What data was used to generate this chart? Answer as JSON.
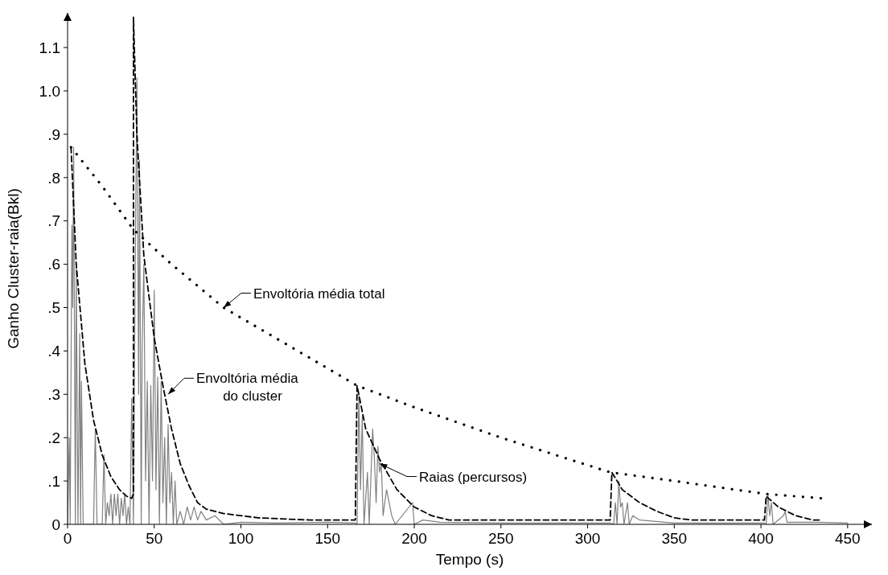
{
  "chart_data": {
    "type": "line",
    "xlabel": "Tempo (s)",
    "ylabel": "Ganho Cluster-raia(Bkl)",
    "xlim": [
      0,
      464
    ],
    "xticks": [
      0,
      50,
      100,
      150,
      200,
      250,
      300,
      350,
      400,
      450
    ],
    "ylim": [
      0,
      1.18
    ],
    "yticks": [
      0,
      {
        "value": 0.1,
        "label": ".1"
      },
      {
        "value": 0.2,
        "label": ".2"
      },
      {
        "value": 0.3,
        "label": ".3"
      },
      {
        "value": 0.4,
        "label": ".4"
      },
      {
        "value": 0.5,
        "label": ".5"
      },
      {
        "value": 0.6,
        "label": ".6"
      },
      {
        "value": 0.7,
        "label": ".7"
      },
      {
        "value": 0.8,
        "label": ".8"
      },
      {
        "value": 0.9,
        "label": ".9"
      },
      {
        "value": 1.0,
        "label": "1.0"
      },
      {
        "value": 1.1,
        "label": "1.1"
      }
    ],
    "grid": false,
    "legend": false,
    "marker": "none",
    "series": [
      {
        "color": "#808080",
        "line_style": "solid",
        "x": [
          0,
          1,
          1.5,
          2.5,
          3,
          3.5,
          4.5,
          5,
          6,
          7,
          7.5,
          8,
          9,
          15,
          16,
          17,
          20,
          21,
          22,
          23,
          24,
          25,
          26,
          27,
          28,
          29,
          30,
          31,
          32,
          33,
          34,
          35,
          36,
          37,
          38,
          39,
          40,
          41,
          41.5,
          42.5,
          43,
          44,
          45,
          46,
          47,
          48,
          49,
          50,
          51,
          52,
          53,
          54,
          55,
          56,
          57,
          58,
          59,
          60,
          61,
          62,
          63,
          65,
          67,
          69,
          71,
          73,
          75,
          77,
          80,
          85,
          90,
          100,
          120,
          150,
          166,
          167,
          168,
          169,
          170,
          171,
          173,
          174,
          176,
          177,
          178,
          179,
          180,
          181,
          182,
          184,
          185,
          187,
          189,
          199,
          200,
          205,
          215,
          250,
          313,
          315,
          316,
          317,
          318,
          319,
          320,
          321,
          323,
          324,
          326,
          330,
          350,
          402,
          403,
          404,
          405,
          406,
          407,
          413,
          414,
          415,
          430,
          450
        ],
        "values": [
          0,
          0.2,
          0,
          0.69,
          0.5,
          0.87,
          0,
          0.6,
          0,
          0.44,
          0,
          0.33,
          0,
          0,
          0.22,
          0,
          0,
          0.16,
          0,
          0.05,
          0.02,
          0.07,
          0,
          0.07,
          0.02,
          0.07,
          0,
          0.06,
          0.02,
          0.07,
          0,
          0.04,
          0,
          0.29,
          0,
          0.58,
          1.03,
          0.3,
          0.84,
          0,
          0.4,
          0.6,
          0.1,
          0.33,
          0,
          0.32,
          0.1,
          0.54,
          0.08,
          0.34,
          0,
          0.33,
          0.05,
          0.2,
          0,
          0.23,
          0.05,
          0.12,
          0,
          0.1,
          0,
          0.03,
          0,
          0.04,
          0.01,
          0.04,
          0.01,
          0.03,
          0.01,
          0.02,
          0,
          0.005,
          0.003,
          0.005,
          0.003,
          0,
          0.3,
          0.08,
          0.25,
          0,
          0.12,
          0,
          0.22,
          0.15,
          0.05,
          0.18,
          0.12,
          0.14,
          0.02,
          0.08,
          0.06,
          0.02,
          0,
          0.05,
          0,
          0.01,
          0.005,
          0.003,
          0.003,
          0,
          0.05,
          0,
          0.1,
          0.04,
          0.05,
          0,
          0.05,
          0,
          0.02,
          0.01,
          0.003,
          0.003,
          0,
          0.07,
          0.02,
          0.05,
          0,
          0.02,
          0.03,
          0.005,
          0.005,
          0.003
        ]
      },
      {
        "color": "#000000",
        "line_style": "dashed",
        "x": [
          2,
          5,
          10,
          15,
          20,
          25,
          30,
          34,
          37,
          38,
          38,
          40,
          44,
          50,
          55,
          60,
          65,
          70,
          75,
          80,
          90,
          110,
          140,
          166,
          167,
          172,
          180,
          190,
          200,
          210,
          220,
          313,
          314,
          320,
          330,
          340,
          350,
          360,
          402,
          403,
          410,
          420,
          430,
          435
        ],
        "values": [
          0.87,
          0.6,
          0.37,
          0.24,
          0.16,
          0.11,
          0.08,
          0.065,
          0.06,
          0.07,
          1.17,
          0.9,
          0.62,
          0.43,
          0.32,
          0.22,
          0.14,
          0.09,
          0.05,
          0.035,
          0.025,
          0.015,
          0.01,
          0.01,
          0.32,
          0.22,
          0.15,
          0.08,
          0.04,
          0.02,
          0.01,
          0.01,
          0.12,
          0.08,
          0.05,
          0.03,
          0.015,
          0.01,
          0.01,
          0.065,
          0.04,
          0.02,
          0.01,
          0.01
        ]
      },
      {
        "color": "#000000",
        "line_style": "dotted",
        "x": [
          2,
          20,
          38,
          60,
          90,
          120,
          150,
          167,
          200,
          250,
          313,
          350,
          403,
          435
        ],
        "values": [
          0.87,
          0.78,
          0.68,
          0.6,
          0.5,
          0.43,
          0.36,
          0.32,
          0.27,
          0.2,
          0.12,
          0.1,
          0.07,
          0.06
        ]
      }
    ],
    "annotations": [
      {
        "text": "Envoltória média total",
        "x": 90,
        "y": 0.5
      },
      {
        "text": "Envoltória média\ndo cluster",
        "x": 58,
        "y": 0.3
      },
      {
        "text": "Raias (percursos)",
        "x": 180,
        "y": 0.14
      }
    ]
  }
}
